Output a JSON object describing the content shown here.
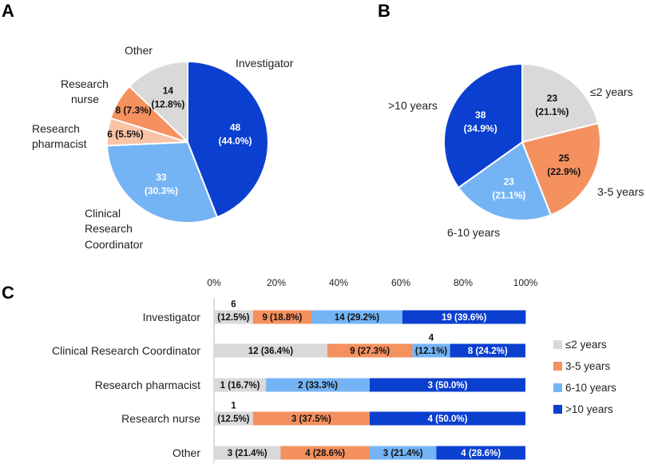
{
  "colors": {
    "gray": "#d9d9d9",
    "orange": "#f4915f",
    "light_blue": "#74b4f4",
    "dark_blue": "#0b3fcf",
    "peach": "#f9c3a6"
  },
  "chart_data": [
    {
      "panel": "A",
      "type": "pie",
      "slices": [
        {
          "name": "Investigator",
          "count": 48,
          "percent": "44.0%",
          "color": "#0b3fcf",
          "label_color": "#ffffff",
          "line1": "48",
          "line2": "(44.0%)",
          "single": ""
        },
        {
          "name": "Clinical Research Coordinator",
          "count": 33,
          "percent": "30.3%",
          "color": "#74b4f4",
          "label_color": "#ffffff",
          "line1": "33",
          "line2": "(30.3%)",
          "single": ""
        },
        {
          "name": "Research pharmacist",
          "count": 6,
          "percent": "5.5%",
          "color": "#f9c3a6",
          "label_color": "#111111",
          "line1": "",
          "line2": "",
          "single": "6 (5.5%)"
        },
        {
          "name": "Research nurse",
          "count": 8,
          "percent": "7.3%",
          "color": "#f4915f",
          "label_color": "#111111",
          "line1": "",
          "line2": "",
          "single": "8 (7.3%)"
        },
        {
          "name": "Other",
          "count": 14,
          "percent": "12.8%",
          "color": "#d9d9d9",
          "label_color": "#111111",
          "line1": "14",
          "line2": "(12.8%)",
          "single": ""
        }
      ],
      "category_labels": {
        "investigator": "Investigator",
        "crc": [
          "Clinical",
          "Research",
          "Coordinator"
        ],
        "pharmacist": [
          "Research",
          "pharmacist"
        ],
        "nurse": [
          "Research",
          "nurse"
        ],
        "other": "Other"
      }
    },
    {
      "panel": "B",
      "type": "pie",
      "slices": [
        {
          "name": "≤2 years",
          "count": 23,
          "percent": "21.1%",
          "color": "#d9d9d9",
          "label_color": "#111111",
          "line1": "23",
          "line2": "(21.1%)"
        },
        {
          "name": "3-5 years",
          "count": 25,
          "percent": "22.9%",
          "color": "#f4915f",
          "label_color": "#111111",
          "line1": "25",
          "line2": "(22.9%)"
        },
        {
          "name": "6-10 years",
          "count": 23,
          "percent": "21.1%",
          "color": "#74b4f4",
          "label_color": "#ffffff",
          "line1": "23",
          "line2": "(21.1%)"
        },
        {
          "name": ">10 years",
          "count": 38,
          "percent": "34.9%",
          "color": "#0b3fcf",
          "label_color": "#ffffff",
          "line1": "38",
          "line2": "(34.9%)"
        }
      ],
      "category_labels": {
        "le2": "≤2 years",
        "y3_5": "3-5 years",
        "y6_10": "6-10 years",
        "gt10": ">10 years"
      }
    },
    {
      "panel": "C",
      "type": "bar",
      "orientation": "horizontal",
      "stacked": "100%",
      "x_ticks": [
        "0%",
        "20%",
        "40%",
        "60%",
        "80%",
        "100%"
      ],
      "xlim": [
        0,
        100
      ],
      "series": [
        {
          "name": "≤2 years",
          "color": "#d9d9d9",
          "label_color": "#111111"
        },
        {
          "name": "3-5 years",
          "color": "#f4915f",
          "label_color": "#111111"
        },
        {
          "name": "6-10 years",
          "color": "#74b4f4",
          "label_color": "#111111"
        },
        {
          "name": ">10 years",
          "color": "#0b3fcf",
          "label_color": "#ffffff"
        }
      ],
      "rows": [
        {
          "name": "Investigator",
          "values": [
            6,
            9,
            14,
            19
          ],
          "percents": [
            12.5,
            18.8,
            29.2,
            39.6
          ],
          "labels": [
            "(12.5%)",
            "9 (18.8%)",
            "14  (29.2%)",
            "19  (39.6%)"
          ],
          "above": [
            "6",
            "",
            "",
            ""
          ]
        },
        {
          "name": "Clinical Research Coordinator",
          "values": [
            12,
            9,
            4,
            8
          ],
          "percents": [
            36.4,
            27.3,
            12.1,
            24.2
          ],
          "labels": [
            "12 (36.4%)",
            "9 (27.3%)",
            "(12.1%)",
            "8 (24.2%)"
          ],
          "above": [
            "",
            "",
            "4",
            ""
          ]
        },
        {
          "name": "Research pharmacist",
          "values": [
            1,
            0,
            2,
            3
          ],
          "percents": [
            16.7,
            0,
            33.3,
            50.0
          ],
          "labels": [
            "1 (16.7%)",
            "",
            "2 (33.3%)",
            "3 (50.0%)"
          ],
          "above": [
            "",
            "",
            "",
            ""
          ]
        },
        {
          "name": "Research nurse",
          "values": [
            1,
            3,
            0,
            4
          ],
          "percents": [
            12.5,
            37.5,
            0,
            50.0
          ],
          "labels": [
            "(12.5%)",
            "3 (37.5%)",
            "",
            "4 (50.0%)"
          ],
          "above": [
            "1",
            "",
            "",
            ""
          ]
        },
        {
          "name": "Other",
          "values": [
            3,
            4,
            3,
            4
          ],
          "percents": [
            21.4,
            28.6,
            21.4,
            28.6
          ],
          "labels": [
            "3 (21.4%)",
            "4 (28.6%)",
            "3  (21.4%)",
            "4 (28.6%)"
          ],
          "above": [
            "",
            "",
            "",
            ""
          ]
        }
      ],
      "legend_position": "right"
    }
  ]
}
